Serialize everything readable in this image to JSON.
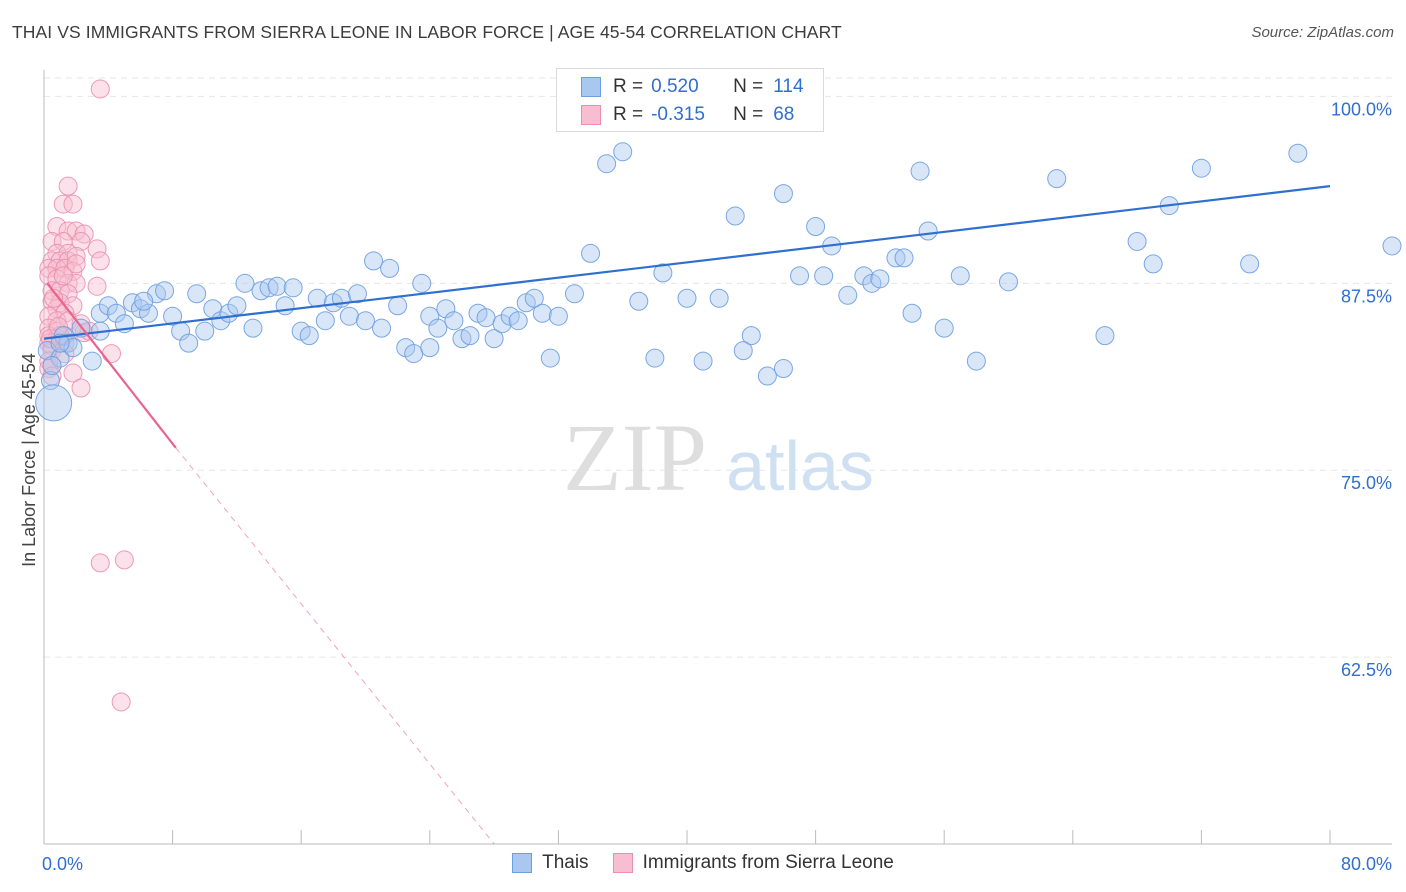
{
  "title": "THAI VS IMMIGRANTS FROM SIERRA LEONE IN LABOR FORCE | AGE 45-54 CORRELATION CHART",
  "source": "Source: ZipAtlas.com",
  "watermark": {
    "zip": "ZIP",
    "atlas": "atlas"
  },
  "legend_top": {
    "rows": [
      {
        "r_label": "R =",
        "r_value": "0.520",
        "n_label": "N =",
        "n_value": "114"
      },
      {
        "r_label": "R =",
        "r_value": "-0.315",
        "n_label": "N =",
        "n_value": "68"
      }
    ]
  },
  "legend_bottom": {
    "items": [
      {
        "label": "Thais"
      },
      {
        "label": "Immigrants from Sierra Leone"
      }
    ]
  },
  "colors": {
    "blue_fill": "#a9c8ef",
    "blue_stroke": "#6d9fe0",
    "blue_line": "#2f6fcf",
    "pink_fill": "#f6bfd1",
    "pink_stroke": "#ec8fae",
    "pink_line": "#e8648f",
    "axis_label": "#2f6fcf",
    "grid": "#e6e6e6"
  },
  "chart_data": {
    "type": "scatter",
    "title": "THAI VS IMMIGRANTS FROM SIERRA LEONE IN LABOR FORCE | AGE 45-54 CORRELATION CHART",
    "xlabel": "",
    "ylabel": "In Labor Force | Age 45-54",
    "xlim": [
      0,
      80
    ],
    "ylim": [
      50,
      101.5
    ],
    "x_tick_labels": [
      "0.0%",
      "80.0%"
    ],
    "y_ticks": [
      62.5,
      75.0,
      87.5,
      100.0
    ],
    "y_tick_labels": [
      "62.5%",
      "75.0%",
      "87.5%",
      "100.0%"
    ],
    "grid": true,
    "legend_position": "top-center",
    "series": [
      {
        "name": "Thais",
        "r": 0.52,
        "n": 114,
        "trend": {
          "x": [
            0,
            80
          ],
          "y": [
            83.8,
            94.0
          ]
        },
        "points": [
          [
            0.2,
            83.0
          ],
          [
            0.4,
            81.0
          ],
          [
            0.6,
            79.5
          ],
          [
            1.0,
            82.5
          ],
          [
            1.2,
            84.0
          ],
          [
            1.5,
            83.5
          ],
          [
            1.8,
            83.2
          ],
          [
            2.3,
            84.5
          ],
          [
            3.0,
            82.3
          ],
          [
            3.5,
            85.5
          ],
          [
            4.0,
            86.0
          ],
          [
            4.5,
            85.5
          ],
          [
            5.0,
            84.8
          ],
          [
            5.5,
            86.2
          ],
          [
            6.0,
            85.8
          ],
          [
            6.5,
            85.5
          ],
          [
            7.0,
            86.8
          ],
          [
            7.5,
            87.0
          ],
          [
            8.0,
            85.3
          ],
          [
            8.5,
            84.3
          ],
          [
            9.0,
            83.5
          ],
          [
            9.5,
            86.8
          ],
          [
            10.0,
            84.3
          ],
          [
            10.5,
            85.8
          ],
          [
            11.0,
            85.0
          ],
          [
            11.5,
            85.5
          ],
          [
            12.0,
            86.0
          ],
          [
            12.5,
            87.5
          ],
          [
            13.0,
            84.5
          ],
          [
            13.5,
            87.0
          ],
          [
            14.0,
            87.2
          ],
          [
            14.5,
            87.3
          ],
          [
            15.0,
            86.0
          ],
          [
            15.5,
            87.2
          ],
          [
            16.0,
            84.3
          ],
          [
            16.5,
            84.0
          ],
          [
            17.0,
            86.5
          ],
          [
            17.5,
            85.0
          ],
          [
            18.0,
            86.2
          ],
          [
            18.5,
            86.5
          ],
          [
            19.0,
            85.3
          ],
          [
            19.5,
            86.8
          ],
          [
            20.0,
            85.0
          ],
          [
            20.5,
            89.0
          ],
          [
            21.0,
            84.5
          ],
          [
            21.5,
            88.5
          ],
          [
            22.0,
            86.0
          ],
          [
            22.5,
            83.2
          ],
          [
            23.0,
            82.8
          ],
          [
            23.5,
            87.5
          ],
          [
            24.0,
            85.3
          ],
          [
            24.5,
            84.5
          ],
          [
            25.0,
            85.8
          ],
          [
            25.5,
            85.0
          ],
          [
            26.0,
            83.8
          ],
          [
            26.5,
            84.0
          ],
          [
            27.0,
            85.5
          ],
          [
            27.5,
            85.2
          ],
          [
            28.0,
            83.8
          ],
          [
            28.5,
            84.8
          ],
          [
            29.0,
            85.3
          ],
          [
            29.5,
            85.0
          ],
          [
            30.0,
            86.2
          ],
          [
            30.5,
            86.5
          ],
          [
            31.0,
            85.5
          ],
          [
            31.5,
            82.5
          ],
          [
            32.0,
            85.3
          ],
          [
            33.0,
            86.8
          ],
          [
            34.0,
            89.5
          ],
          [
            35.0,
            95.5
          ],
          [
            36.0,
            96.3
          ],
          [
            37.0,
            86.3
          ],
          [
            38.0,
            82.5
          ],
          [
            38.5,
            88.2
          ],
          [
            40.0,
            86.5
          ],
          [
            41.0,
            82.3
          ],
          [
            42.0,
            86.5
          ],
          [
            43.0,
            92.0
          ],
          [
            44.0,
            84.0
          ],
          [
            45.0,
            81.3
          ],
          [
            46.0,
            81.8
          ],
          [
            47.0,
            88.0
          ],
          [
            48.0,
            91.3
          ],
          [
            48.5,
            88.0
          ],
          [
            49.0,
            90.0
          ],
          [
            50.0,
            86.7
          ],
          [
            51.0,
            88.0
          ],
          [
            51.5,
            87.5
          ],
          [
            52.0,
            87.8
          ],
          [
            53.0,
            89.2
          ],
          [
            53.5,
            89.2
          ],
          [
            54.0,
            85.5
          ],
          [
            54.5,
            95.0
          ],
          [
            55.0,
            91.0
          ],
          [
            56.0,
            84.5
          ],
          [
            57.0,
            88.0
          ],
          [
            58.0,
            82.3
          ],
          [
            60.0,
            87.6
          ],
          [
            63.0,
            94.5
          ],
          [
            66.0,
            84.0
          ],
          [
            68.0,
            90.3
          ],
          [
            69.0,
            88.8
          ],
          [
            70.0,
            92.7
          ],
          [
            72.0,
            95.2
          ],
          [
            75.0,
            88.8
          ],
          [
            78.0,
            96.2
          ],
          [
            84.0,
            90.0
          ],
          [
            1.0,
            83.5
          ],
          [
            6.2,
            86.3
          ],
          [
            24.0,
            83.2
          ],
          [
            0.5,
            82.0
          ],
          [
            3.5,
            84.3
          ],
          [
            46.0,
            93.5
          ],
          [
            43.5,
            83.0
          ]
        ]
      },
      {
        "name": "Immigrants from Sierra Leone",
        "r": -0.315,
        "n": 68,
        "trend": {
          "x": [
            0.2,
            8.2
          ],
          "y": [
            87.5,
            76.5
          ]
        },
        "trend_dashed": {
          "x": [
            8.2,
            28
          ],
          "y": [
            76.5,
            50
          ]
        },
        "points": [
          [
            3.5,
            100.5
          ],
          [
            1.5,
            94.0
          ],
          [
            1.2,
            92.8
          ],
          [
            1.8,
            92.8
          ],
          [
            0.8,
            91.3
          ],
          [
            1.5,
            91.0
          ],
          [
            2.0,
            91.0
          ],
          [
            2.5,
            90.8
          ],
          [
            0.5,
            90.3
          ],
          [
            1.2,
            90.3
          ],
          [
            2.3,
            90.3
          ],
          [
            0.8,
            89.5
          ],
          [
            1.5,
            89.5
          ],
          [
            3.3,
            89.8
          ],
          [
            0.5,
            89.0
          ],
          [
            1.0,
            89.0
          ],
          [
            1.5,
            89.0
          ],
          [
            2.0,
            89.3
          ],
          [
            0.3,
            88.5
          ],
          [
            0.8,
            88.5
          ],
          [
            1.3,
            88.5
          ],
          [
            1.8,
            88.3
          ],
          [
            3.5,
            89.0
          ],
          [
            0.3,
            88.0
          ],
          [
            0.8,
            87.8
          ],
          [
            1.5,
            87.5
          ],
          [
            2.0,
            87.5
          ],
          [
            3.3,
            87.3
          ],
          [
            0.5,
            87.0
          ],
          [
            1.0,
            87.0
          ],
          [
            1.5,
            86.8
          ],
          [
            0.5,
            86.3
          ],
          [
            1.0,
            86.2
          ],
          [
            1.8,
            86.0
          ],
          [
            0.8,
            85.8
          ],
          [
            1.3,
            85.5
          ],
          [
            0.3,
            85.3
          ],
          [
            0.8,
            85.0
          ],
          [
            1.5,
            85.0
          ],
          [
            2.3,
            84.8
          ],
          [
            0.3,
            84.5
          ],
          [
            0.8,
            84.3
          ],
          [
            1.3,
            84.0
          ],
          [
            0.3,
            84.0
          ],
          [
            0.8,
            83.8
          ],
          [
            1.3,
            83.5
          ],
          [
            2.5,
            84.2
          ],
          [
            0.3,
            83.5
          ],
          [
            0.5,
            83.3
          ],
          [
            0.5,
            83.0
          ],
          [
            1.3,
            82.8
          ],
          [
            4.2,
            82.8
          ],
          [
            0.3,
            82.3
          ],
          [
            0.5,
            82.0
          ],
          [
            1.8,
            81.5
          ],
          [
            0.3,
            81.8
          ],
          [
            0.5,
            81.3
          ],
          [
            2.3,
            80.5
          ],
          [
            3.5,
            68.8
          ],
          [
            5.0,
            69.0
          ],
          [
            4.8,
            59.5
          ],
          [
            1.0,
            84.0
          ],
          [
            2.8,
            84.3
          ],
          [
            0.6,
            86.5
          ],
          [
            1.2,
            88.0
          ],
          [
            2.0,
            88.8
          ],
          [
            0.4,
            83.8
          ],
          [
            0.9,
            84.6
          ]
        ]
      }
    ]
  }
}
